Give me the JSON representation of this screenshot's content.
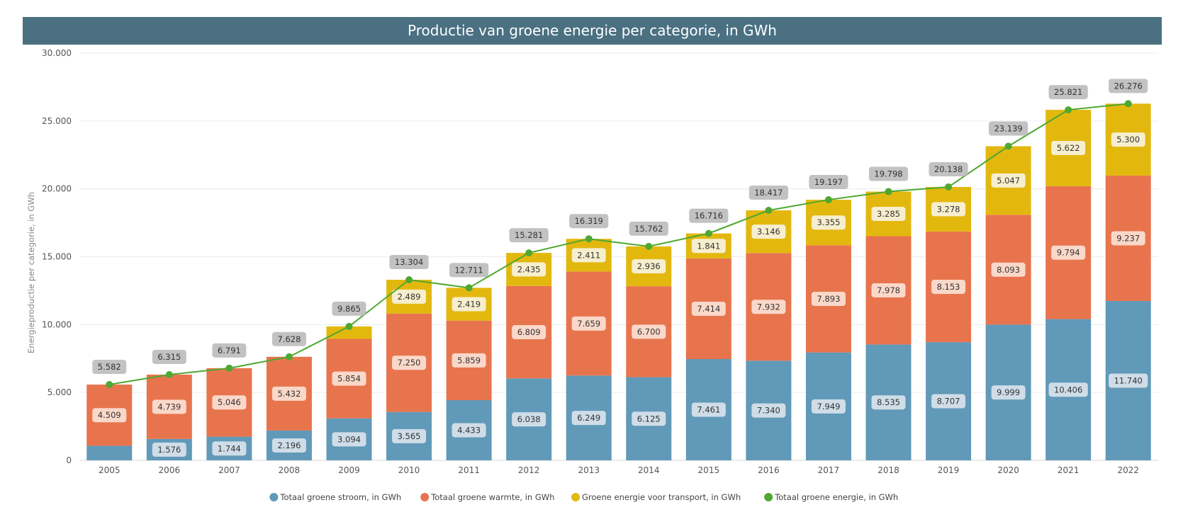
{
  "chart_data": {
    "type": "bar",
    "stacked": true,
    "title": "Productie van groene energie per categorie, in GWh",
    "ylabel": "Energieproductie per categorie, in GWh",
    "xlabel": "",
    "ylim": [
      0,
      30000
    ],
    "yticks": [
      0,
      5000,
      10000,
      15000,
      20000,
      25000,
      30000
    ],
    "ytick_labels": [
      "0",
      "5.000",
      "10.000",
      "15.000",
      "20.000",
      "25.000",
      "30.000"
    ],
    "grid": true,
    "legend_position": "bottom",
    "categories": [
      "2005",
      "2006",
      "2007",
      "2008",
      "2009",
      "2010",
      "2011",
      "2012",
      "2013",
      "2014",
      "2015",
      "2016",
      "2017",
      "2018",
      "2019",
      "2020",
      "2021",
      "2022"
    ],
    "series": [
      {
        "name": "Totaal groene stroom, in GWh",
        "type": "bar",
        "color": "#6199b8",
        "values": [
          1073,
          1576,
          1744,
          2196,
          3094,
          3565,
          4433,
          6038,
          6249,
          6125,
          7461,
          7340,
          7949,
          8535,
          8707,
          9999,
          10406,
          11740
        ],
        "labels": [
          null,
          "1.576",
          "1.744",
          "2.196",
          "3.094",
          "3.565",
          "4.433",
          "6.038",
          "6.249",
          "6.125",
          "7.461",
          "7.340",
          "7.949",
          "8.535",
          "8.707",
          "9.999",
          "10.406",
          "11.740"
        ]
      },
      {
        "name": "Totaal groene warmte, in GWh",
        "type": "bar",
        "color": "#e8744d",
        "values": [
          4509,
          4739,
          5046,
          5432,
          5854,
          7250,
          5859,
          6809,
          7659,
          6700,
          7414,
          7932,
          7893,
          7978,
          8153,
          8093,
          9794,
          9237
        ],
        "labels": [
          "4.509",
          "4.739",
          "5.046",
          "5.432",
          "5.854",
          "7.250",
          "5.859",
          "6.809",
          "7.659",
          "6.700",
          "7.414",
          "7.932",
          "7.893",
          "7.978",
          "8.153",
          "8.093",
          "9.794",
          "9.237"
        ]
      },
      {
        "name": "Groene energie voor transport, in GWh",
        "type": "bar",
        "color": "#e3b80e",
        "values": [
          0,
          0,
          0,
          0,
          917,
          2489,
          2419,
          2435,
          2411,
          2936,
          1841,
          3146,
          3355,
          3285,
          3278,
          5047,
          5622,
          5300
        ],
        "labels": [
          null,
          null,
          null,
          null,
          null,
          "2.489",
          "2.419",
          "2.435",
          "2.411",
          "2.936",
          "1.841",
          "3.146",
          "3.355",
          "3.285",
          "3.278",
          "5.047",
          "5.622",
          "5.300"
        ]
      },
      {
        "name": "Totaal groene energie, in GWh",
        "type": "line",
        "color": "#4ea832",
        "values": [
          5582,
          6315,
          6791,
          7628,
          9865,
          13304,
          12711,
          15281,
          16319,
          15762,
          16716,
          18417,
          19197,
          19798,
          20138,
          23139,
          25821,
          26276
        ],
        "labels": [
          "5.582",
          "6.315",
          "6.791",
          "7.628",
          "9.865",
          "13.304",
          "12.711",
          "15.281",
          "16.319",
          "15.762",
          "16.716",
          "18.417",
          "19.197",
          "19.798",
          "20.138",
          "23.139",
          "25.821",
          "26.276"
        ]
      }
    ]
  }
}
